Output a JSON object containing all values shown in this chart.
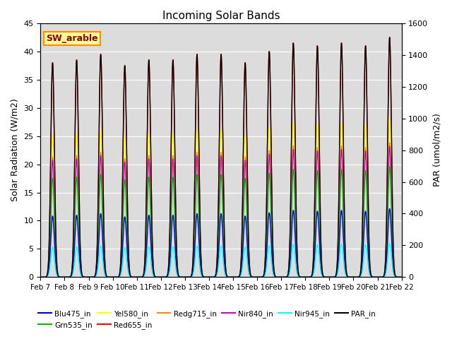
{
  "title": "Incoming Solar Bands",
  "ylabel_left": "Solar Radiation (W/m2)",
  "ylabel_right": "PAR (umol/m2/s)",
  "ylim_left": [
    0,
    45
  ],
  "ylim_right": [
    0,
    1600
  ],
  "yticks_left": [
    0,
    5,
    10,
    15,
    20,
    25,
    30,
    35,
    40,
    45
  ],
  "yticks_right": [
    0,
    200,
    400,
    600,
    800,
    1000,
    1200,
    1400,
    1600
  ],
  "date_labels": [
    "Feb 7",
    "Feb 8",
    "Feb 9",
    "Feb 10",
    "Feb 11",
    "Feb 12",
    "Feb 13",
    "Feb 14",
    "Feb 15",
    "Feb 16",
    "Feb 17",
    "Feb 18",
    "Feb 19",
    "Feb 20",
    "Feb 21",
    "Feb 22"
  ],
  "series": {
    "Blu475_in": {
      "color": "#0000CC",
      "lw": 1.0
    },
    "Grn535_in": {
      "color": "#00BB00",
      "lw": 1.0
    },
    "Yel580_in": {
      "color": "#FFFF00",
      "lw": 1.0
    },
    "Red655_in": {
      "color": "#FF0000",
      "lw": 1.0
    },
    "Redg715_in": {
      "color": "#FF8800",
      "lw": 1.0
    },
    "Nir840_in": {
      "color": "#CC00CC",
      "lw": 1.0
    },
    "Nir945_in": {
      "color": "#00FFFF",
      "lw": 1.0
    },
    "PAR_in": {
      "color": "#000000",
      "lw": 1.0
    }
  },
  "annotation_text": "SW_arable",
  "annotation_color": "#8B0000",
  "annotation_bg": "#FFFF99",
  "annotation_border": "#FF8C00",
  "bg_color": "#DCDCDC",
  "n_days": 15,
  "steps_per_day": 288,
  "day_peaks_red": [
    38.0,
    38.5,
    39.5,
    37.5,
    38.5,
    38.5,
    39.5,
    39.5,
    38.0,
    40.0,
    41.5,
    41.0,
    41.5,
    41.0,
    42.5
  ],
  "fracs": {
    "Blu475_in": 0.285,
    "Grn535_in": 0.46,
    "Yel580_in": 0.66,
    "Red655_in": 1.0,
    "Redg715_in": 0.56,
    "Nir840_in": 0.545,
    "Nir945_in": 0.14
  },
  "par_scale": 35.5,
  "sigma": 1.8,
  "peak_hour": 12.0
}
